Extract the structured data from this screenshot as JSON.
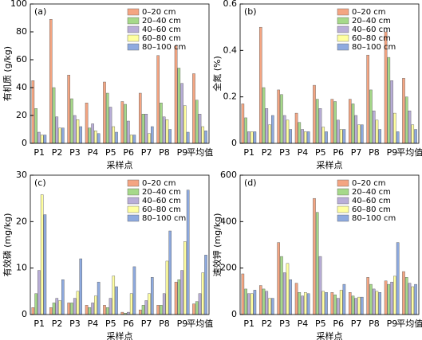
{
  "chart_data": [
    {
      "type": "bar",
      "panel_label": "(a)",
      "y_label": "有机质 (g/kg)",
      "x_label": "采样点",
      "categories": [
        "P1",
        "P2",
        "P3",
        "P4",
        "P5",
        "P6",
        "P7",
        "P8",
        "P9",
        "平均值"
      ],
      "series": [
        {
          "name": "0–20 cm",
          "color": "#f4a582",
          "values": [
            45,
            89,
            49,
            29,
            44,
            30,
            36,
            63,
            70,
            50
          ]
        },
        {
          "name": "20–40 cm",
          "color": "#a6d98a",
          "values": [
            25,
            40,
            32,
            11,
            36,
            28,
            21,
            29,
            54,
            31
          ]
        },
        {
          "name": "40–60 cm",
          "color": "#b9aed8",
          "values": [
            8,
            19,
            20,
            14,
            26,
            16,
            21,
            19,
            43,
            21
          ]
        },
        {
          "name": "60–80 cm",
          "color": "#ffffa0",
          "values": [
            6,
            11,
            17,
            9,
            12,
            6,
            7,
            17,
            27,
            12
          ]
        },
        {
          "name": "80–100 cm",
          "color": "#8eaadf",
          "values": [
            6,
            11,
            12,
            7,
            8,
            6,
            12,
            10,
            8,
            9
          ]
        }
      ],
      "ylim": [
        0,
        100
      ],
      "yticks": [
        0,
        20,
        40,
        60,
        80,
        100
      ]
    },
    {
      "type": "bar",
      "panel_label": "(b)",
      "y_label": "全氮 (%)",
      "x_label": "采样点",
      "categories": [
        "P1",
        "P2",
        "P3",
        "P4",
        "P5",
        "P6",
        "P7",
        "P8",
        "P9",
        "平均值"
      ],
      "series": [
        {
          "name": "0–20 cm",
          "color": "#f4a582",
          "values": [
            0.17,
            0.5,
            0.23,
            0.13,
            0.25,
            0.19,
            0.19,
            0.38,
            0.48,
            0.28
          ]
        },
        {
          "name": "20–40 cm",
          "color": "#a6d98a",
          "values": [
            0.11,
            0.24,
            0.21,
            0.09,
            0.19,
            0.18,
            0.17,
            0.23,
            0.37,
            0.2
          ]
        },
        {
          "name": "40–60 cm",
          "color": "#b9aed8",
          "values": [
            0.05,
            0.15,
            0.12,
            0.06,
            0.15,
            0.1,
            0.12,
            0.14,
            0.27,
            0.14
          ]
        },
        {
          "name": "60–80 cm",
          "color": "#ffffa0",
          "values": [
            0.05,
            0.08,
            0.1,
            0.05,
            0.07,
            0.06,
            0.08,
            0.1,
            0.13,
            0.08
          ]
        },
        {
          "name": "80–100 cm",
          "color": "#8eaadf",
          "values": [
            0.05,
            0.12,
            0.06,
            0.05,
            0.05,
            0.06,
            0.08,
            0.06,
            0.05,
            0.06
          ]
        }
      ],
      "ylim": [
        0,
        0.6
      ],
      "yticks": [
        0,
        0.2,
        0.4,
        0.6
      ]
    },
    {
      "type": "bar",
      "panel_label": "(c)",
      "y_label": "有效磷 (mg/kg)",
      "x_label": "采样点",
      "categories": [
        "P1",
        "P2",
        "P3",
        "P4",
        "P5",
        "P6",
        "P7",
        "P8",
        "P9",
        "平均值"
      ],
      "series": [
        {
          "name": "0–20 cm",
          "color": "#f4a582",
          "values": [
            1.5,
            1.5,
            2.5,
            2,
            2,
            0.5,
            1,
            2,
            7,
            2.3
          ]
        },
        {
          "name": "20–40 cm",
          "color": "#a6d98a",
          "values": [
            4.5,
            2.5,
            2.5,
            1.5,
            1.5,
            0.3,
            2,
            2,
            7.5,
            2.8
          ]
        },
        {
          "name": "40–60 cm",
          "color": "#b9aed8",
          "values": [
            9.5,
            3.5,
            3.5,
            2.5,
            3.5,
            0.5,
            3,
            4.5,
            9.5,
            4.5
          ]
        },
        {
          "name": "60–80 cm",
          "color": "#ffffa0",
          "values": [
            25.8,
            3,
            5,
            4,
            8.3,
            4.5,
            4.5,
            11.5,
            15.7,
            9
          ]
        },
        {
          "name": "80–100 cm",
          "color": "#8eaadf",
          "values": [
            21.5,
            7.5,
            12,
            7,
            6,
            10.3,
            8,
            18,
            26.8,
            12.8
          ]
        }
      ],
      "ylim": [
        0,
        30
      ],
      "yticks": [
        0,
        10,
        20,
        30
      ]
    },
    {
      "type": "bar",
      "panel_label": "(d)",
      "y_label": "速效钾 (mg/kg)",
      "x_label": "采样点",
      "categories": [
        "P1",
        "P2",
        "P3",
        "P4",
        "P5",
        "P6",
        "P7",
        "P8",
        "P9",
        "平均值"
      ],
      "series": [
        {
          "name": "0–20 cm",
          "color": "#f4a582",
          "values": [
            175,
            125,
            310,
            135,
            500,
            95,
            95,
            160,
            145,
            185
          ]
        },
        {
          "name": "20–40 cm",
          "color": "#a6d98a",
          "values": [
            110,
            110,
            250,
            95,
            440,
            85,
            80,
            130,
            130,
            160
          ]
        },
        {
          "name": "40–60 cm",
          "color": "#b9aed8",
          "values": [
            90,
            100,
            180,
            80,
            250,
            70,
            70,
            110,
            140,
            135
          ]
        },
        {
          "name": "60–80 cm",
          "color": "#ffffa0",
          "values": [
            90,
            70,
            220,
            95,
            100,
            105,
            75,
            100,
            165,
            120
          ]
        },
        {
          "name": "80–100 cm",
          "color": "#8eaadf",
          "values": [
            105,
            70,
            150,
            90,
            95,
            130,
            75,
            95,
            310,
            130
          ]
        }
      ],
      "ylim": [
        0,
        600
      ],
      "yticks": [
        0,
        200,
        400,
        600
      ]
    }
  ]
}
